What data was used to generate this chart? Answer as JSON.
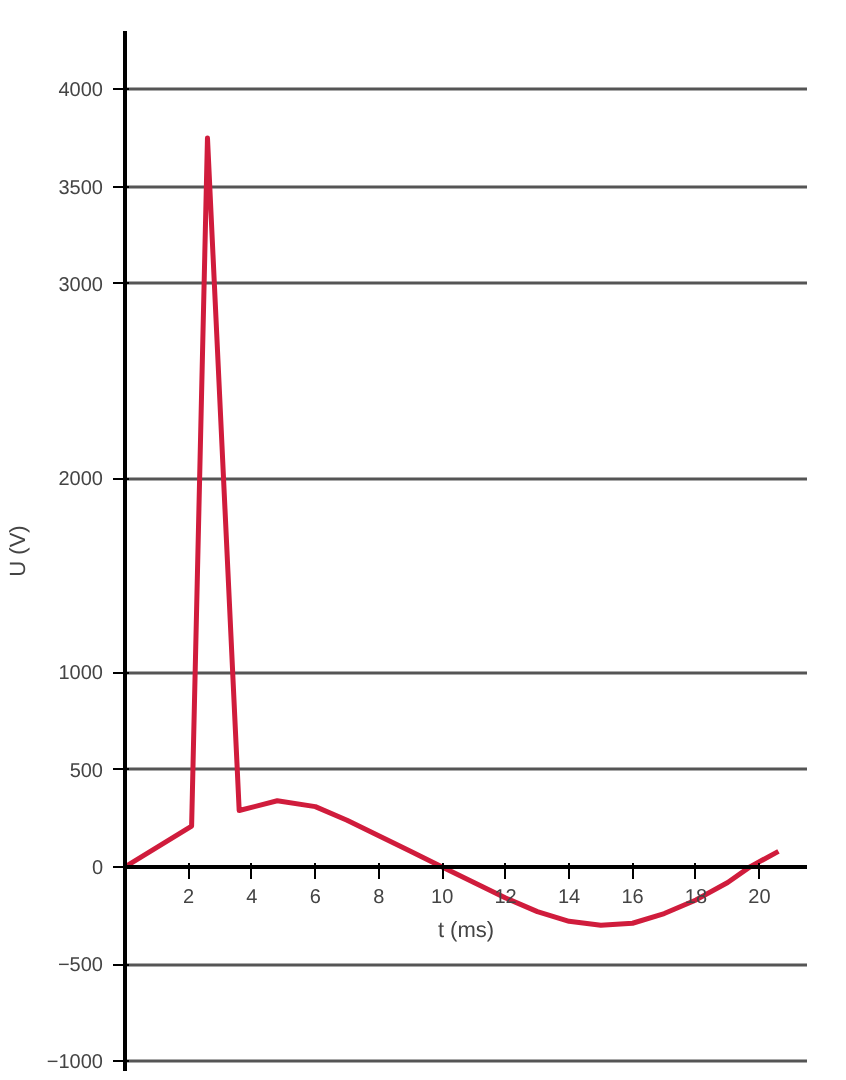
{
  "chart_data": {
    "type": "line",
    "xlabel": "t (ms)",
    "ylabel": "U (V)",
    "x": [
      0,
      2.1,
      2.6,
      3.6,
      4.8,
      6,
      7,
      8,
      9,
      10,
      11,
      12,
      13,
      14,
      15,
      16,
      17,
      18,
      19,
      19.7,
      20.6
    ],
    "series": [
      {
        "color": "#d01c3c",
        "values": [
          0,
          210,
          3750,
          290,
          340,
          310,
          240,
          160,
          80,
          0,
          -80,
          -160,
          -230,
          -280,
          -300,
          -290,
          -240,
          -170,
          -80,
          0,
          80
        ]
      }
    ],
    "xlim": [
      0,
      21.5
    ],
    "ylim": [
      -1050,
      4300
    ],
    "xticks": [
      2,
      4,
      6,
      8,
      10,
      12,
      14,
      16,
      18,
      20
    ],
    "yticks": [
      -1000,
      -500,
      0,
      500,
      1000,
      2000,
      3000,
      3500,
      4000
    ],
    "grid": "y",
    "marker": "none",
    "line_style": "solid"
  }
}
